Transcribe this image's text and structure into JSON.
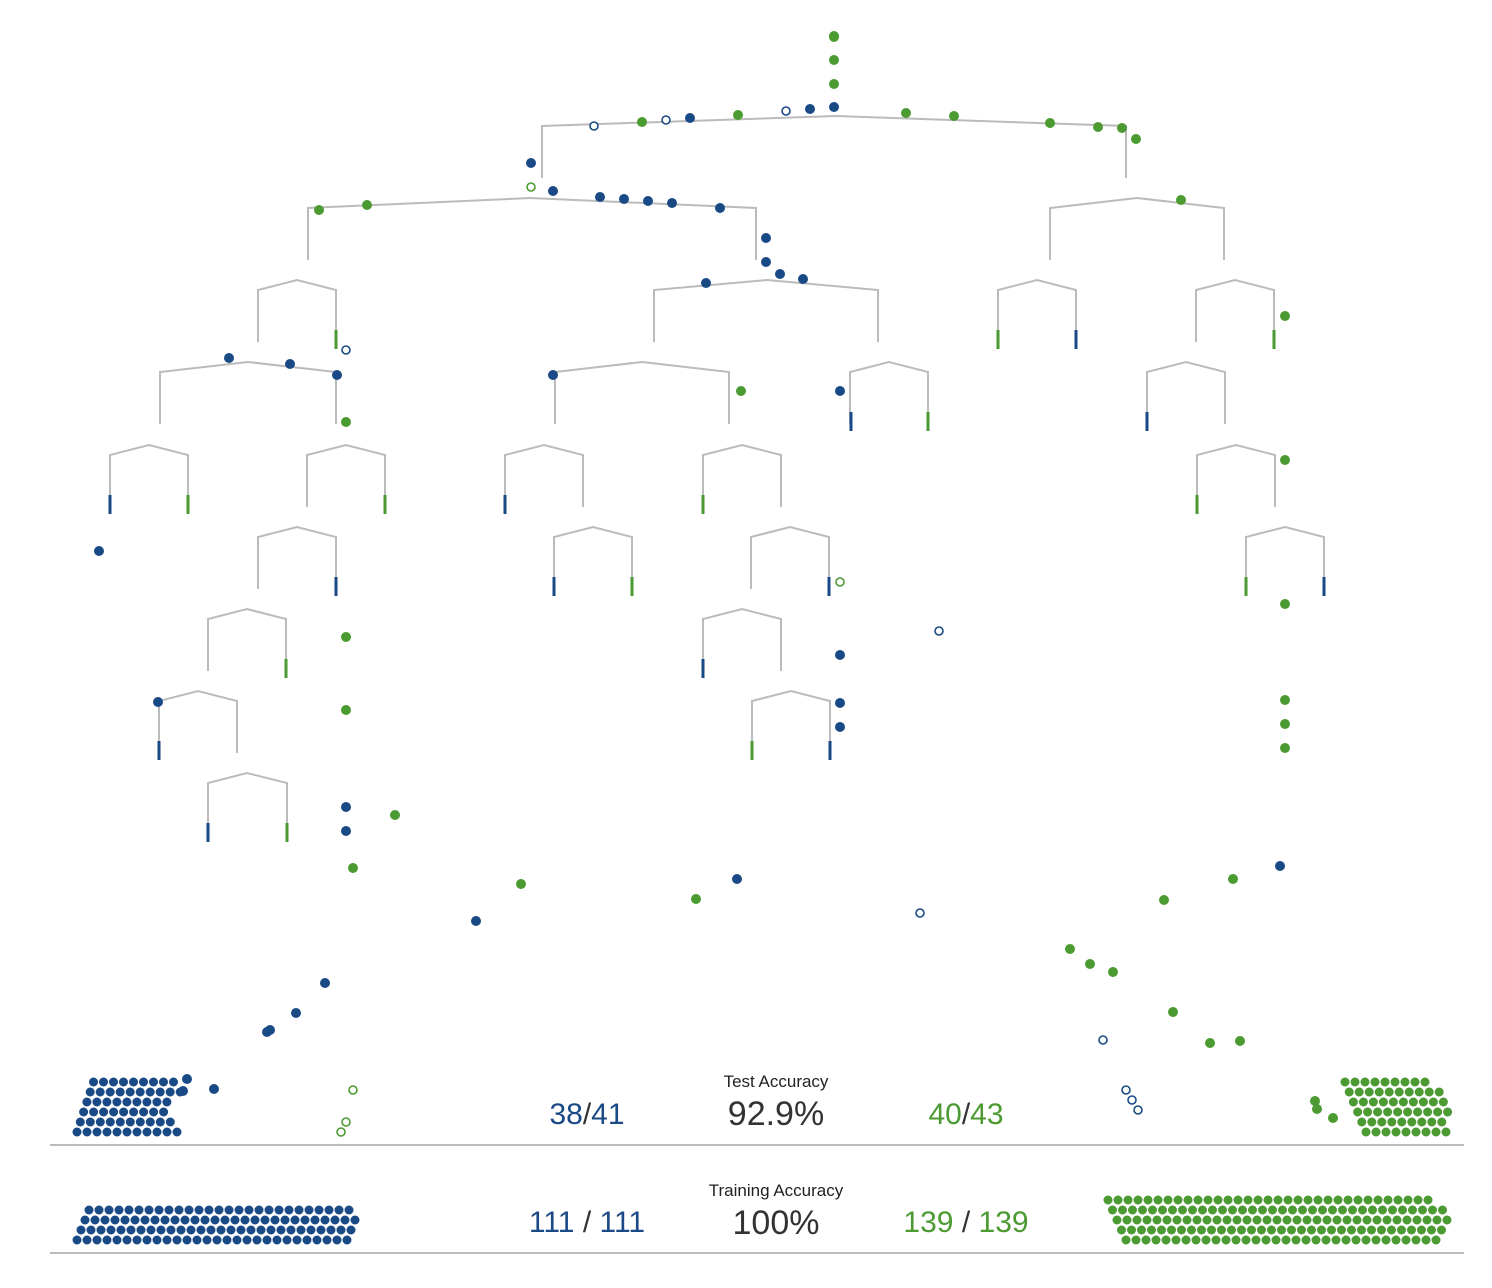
{
  "colors": {
    "class_a": "#1a4a86",
    "class_b": "#4b9a32",
    "tree_line": "#bbbbbb",
    "baseline": "#bbbbbb",
    "text": "#333333"
  },
  "test": {
    "label": "Test Accuracy",
    "accuracy": "92.9%",
    "a_correct": "38",
    "a_total": "41",
    "b_correct": "40",
    "b_total": "43",
    "separator": "/"
  },
  "training": {
    "label": "Training Accuracy",
    "accuracy": "100%",
    "a_correct": "111",
    "a_total": "111",
    "b_correct": "139",
    "b_total": "139",
    "separator": "/"
  }
}
